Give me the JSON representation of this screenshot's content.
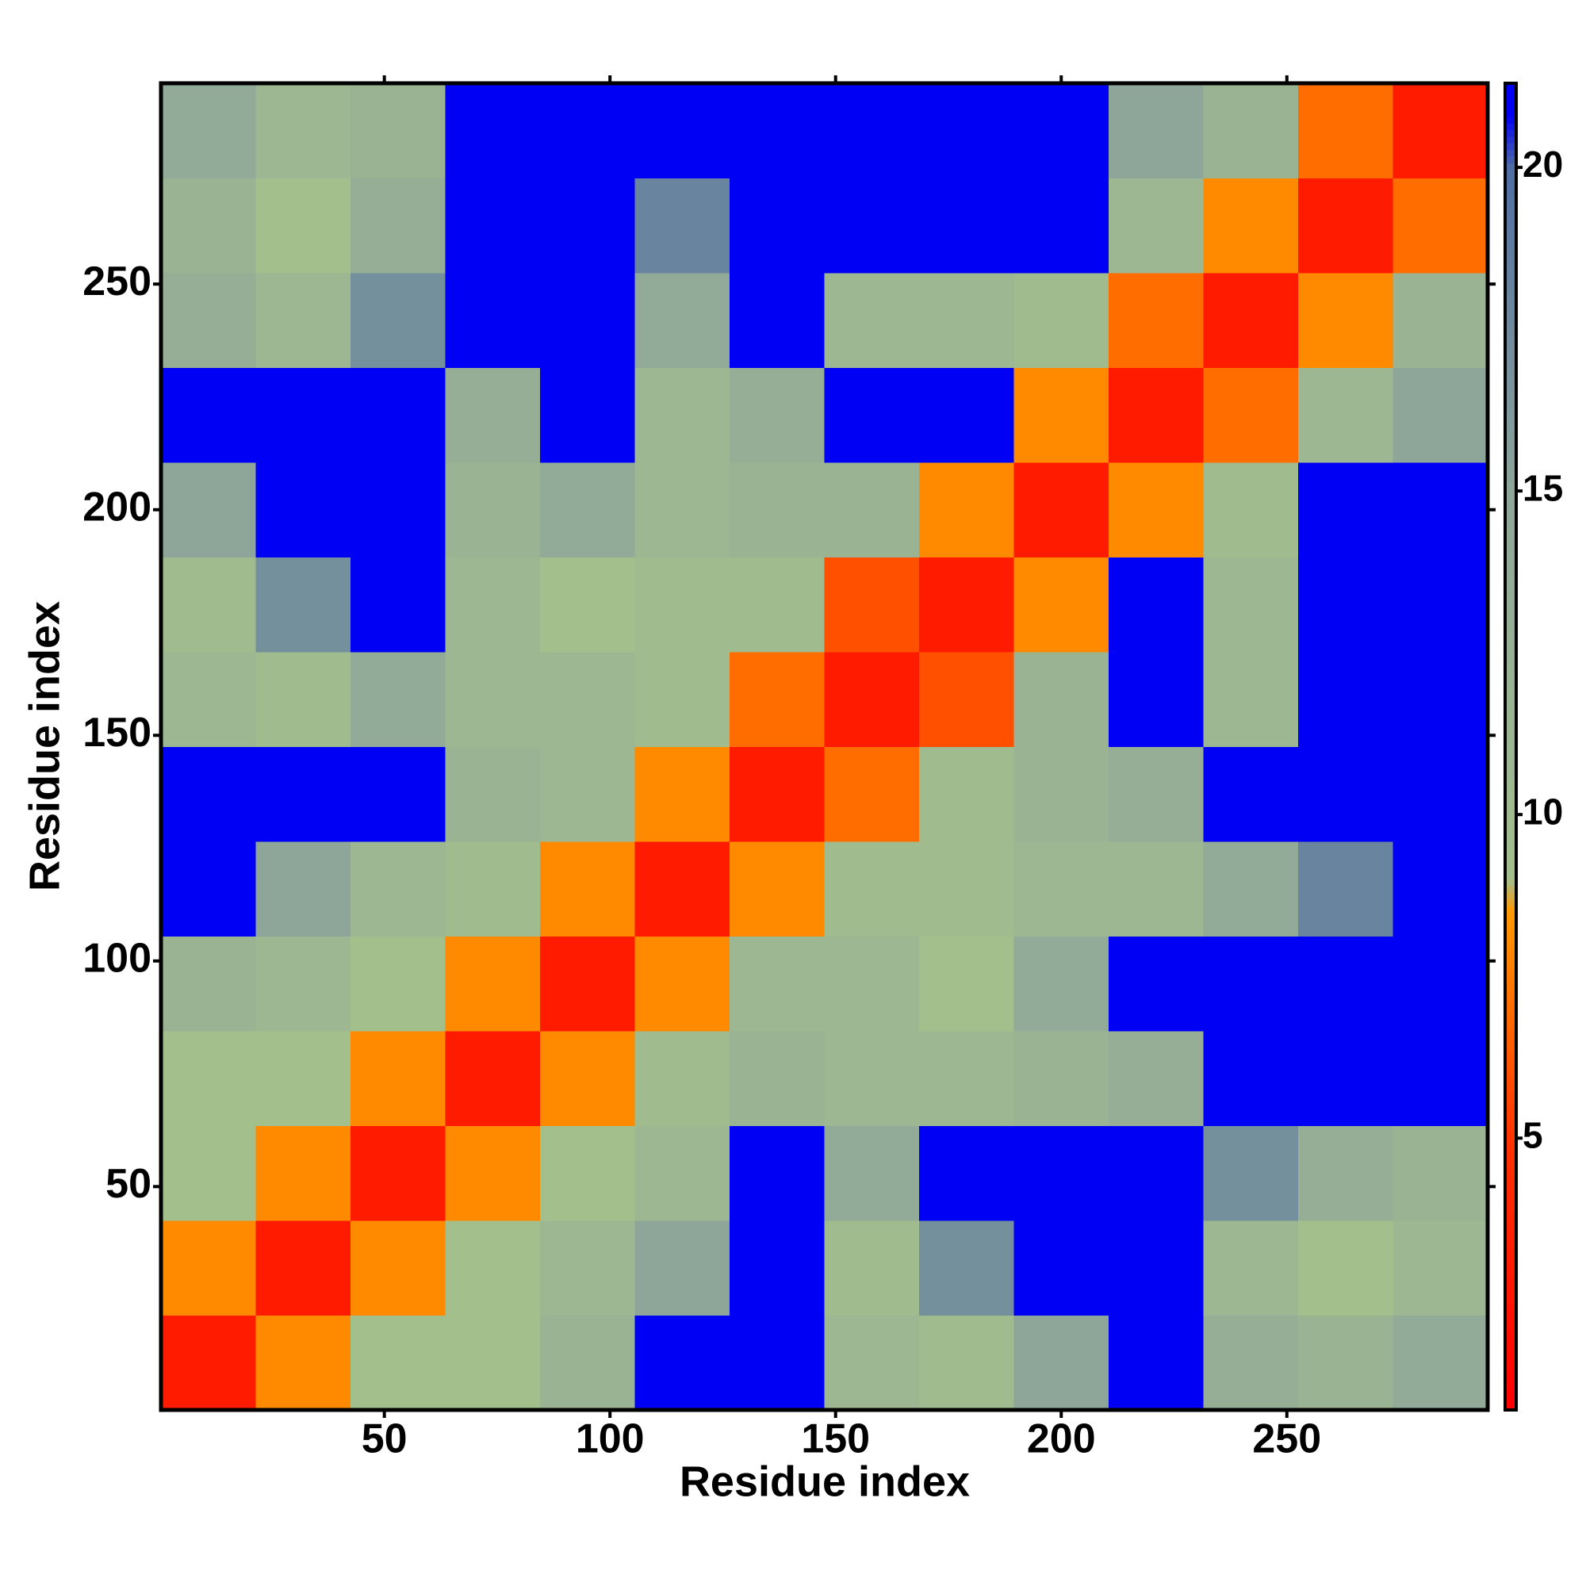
{
  "chart_data": {
    "type": "heatmap",
    "x_label": "Residue index",
    "y_label": "Residue index",
    "xbins": [
      0.5,
      21.5,
      42.5,
      63.5,
      84.5,
      105.5,
      126.5,
      147.5,
      168.5,
      189.5,
      210.5,
      231.5,
      252.5,
      273.5,
      294.5
    ],
    "ybins": [
      0.5,
      21.5,
      42.5,
      63.5,
      84.5,
      105.5,
      126.5,
      147.5,
      168.5,
      189.5,
      210.5,
      231.5,
      252.5,
      273.5,
      294.5
    ],
    "z": [
      [
        3,
        8,
        9,
        9,
        12,
        21,
        21,
        11,
        10,
        15,
        21,
        13,
        12,
        14
      ],
      [
        8,
        3,
        8,
        9,
        11,
        15,
        21,
        10,
        17,
        21,
        21,
        11,
        9,
        11
      ],
      [
        9,
        8,
        3,
        8,
        9,
        11,
        21,
        14,
        21,
        21,
        21,
        17,
        13,
        12
      ],
      [
        9,
        9,
        8,
        3,
        8,
        10,
        12,
        11,
        11,
        12,
        13,
        21,
        21,
        21
      ],
      [
        12,
        11,
        9,
        8,
        3,
        8,
        11,
        11,
        9,
        14,
        21,
        21,
        21,
        21
      ],
      [
        21,
        15,
        11,
        10,
        8,
        3,
        8,
        10,
        10,
        11,
        11,
        14,
        18,
        21
      ],
      [
        21,
        21,
        21,
        12,
        11,
        8,
        3,
        7,
        10,
        12,
        13,
        21,
        21,
        21
      ],
      [
        11,
        10,
        14,
        11,
        11,
        10,
        7,
        3,
        6,
        12,
        21,
        11,
        21,
        21
      ],
      [
        10,
        17,
        21,
        11,
        9,
        10,
        10,
        6,
        3,
        8,
        21,
        11,
        21,
        21
      ],
      [
        15,
        21,
        21,
        12,
        14,
        11,
        12,
        12,
        8,
        3,
        8,
        10,
        21,
        21
      ],
      [
        21,
        21,
        21,
        13,
        21,
        11,
        13,
        21,
        21,
        8,
        3,
        7,
        11,
        15
      ],
      [
        13,
        11,
        17,
        21,
        21,
        14,
        21,
        11,
        11,
        10,
        7,
        3,
        8,
        12
      ],
      [
        12,
        9,
        13,
        21,
        21,
        18,
        21,
        21,
        21,
        21,
        11,
        8,
        3,
        7
      ],
      [
        14,
        11,
        12,
        21,
        21,
        21,
        21,
        21,
        21,
        21,
        15,
        12,
        7,
        3
      ]
    ],
    "xlim": [
      0.5,
      294.5
    ],
    "ylim": [
      0.5,
      294.5
    ],
    "xticks": [
      50,
      100,
      150,
      200,
      250
    ],
    "yticks": [
      50,
      100,
      150,
      200,
      250
    ],
    "clim": [
      0.8,
      21.3
    ],
    "cticks": [
      5,
      10,
      15,
      20
    ],
    "colorscale": [
      [
        0.8,
        "#ff0000"
      ],
      [
        5,
        "#ff3300"
      ],
      [
        8.5,
        "#ff9900"
      ],
      [
        9,
        "#a3bf8c"
      ],
      [
        15,
        "#8ea69a"
      ],
      [
        20,
        "#4f6ea2"
      ],
      [
        20.8,
        "#0000f5"
      ]
    ]
  }
}
